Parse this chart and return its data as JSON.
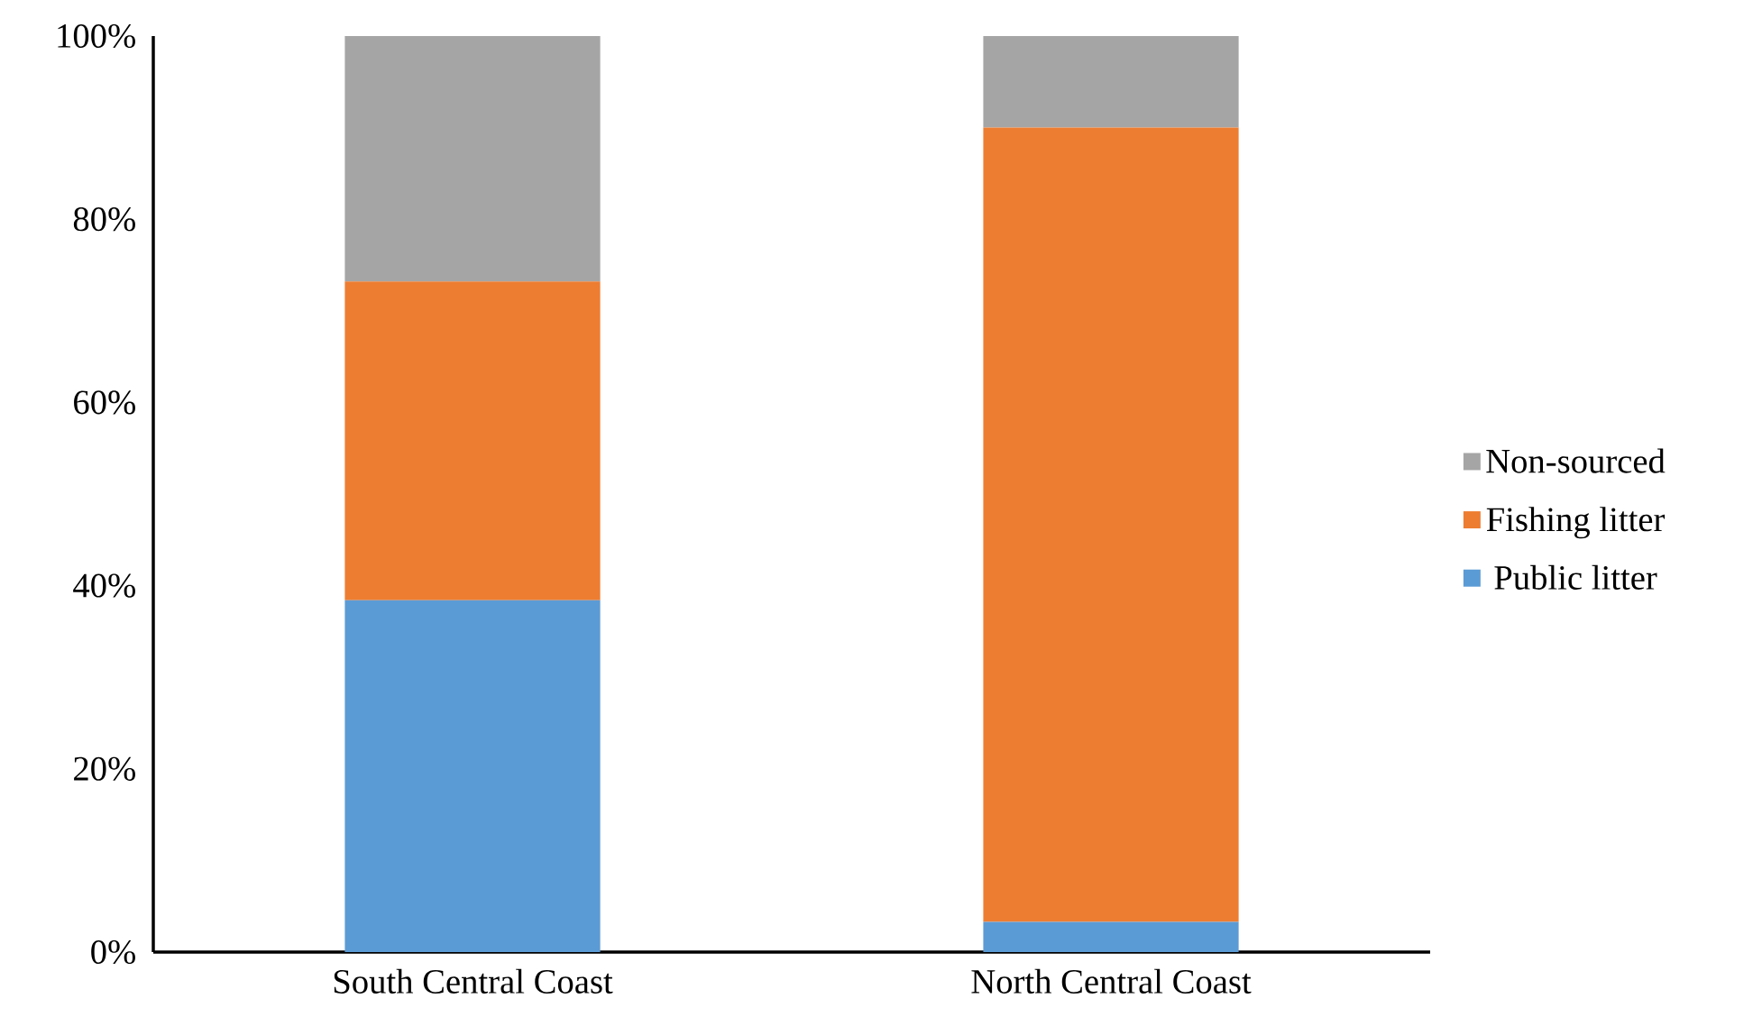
{
  "chart_data": {
    "type": "bar",
    "stacked": true,
    "categories": [
      "South Central Coast",
      "North Central Coast"
    ],
    "series": [
      {
        "name": "Public litter",
        "color": "#5b9bd5",
        "values": [
          38.4,
          3.3
        ]
      },
      {
        "name": "Fishing litter",
        "color": "#ed7d31",
        "values": [
          34.8,
          86.7
        ]
      },
      {
        "name": "Non-sourced",
        "color": "#a5a5a5",
        "values": [
          26.8,
          10.0
        ]
      }
    ],
    "ylim": [
      0,
      100
    ],
    "yticks": [
      {
        "value": 0,
        "label": "0%"
      },
      {
        "value": 20,
        "label": "20%"
      },
      {
        "value": 40,
        "label": "40%"
      },
      {
        "value": 60,
        "label": "60%"
      },
      {
        "value": 80,
        "label": "80%"
      },
      {
        "value": 100,
        "label": "100%"
      }
    ],
    "legend": "right"
  }
}
